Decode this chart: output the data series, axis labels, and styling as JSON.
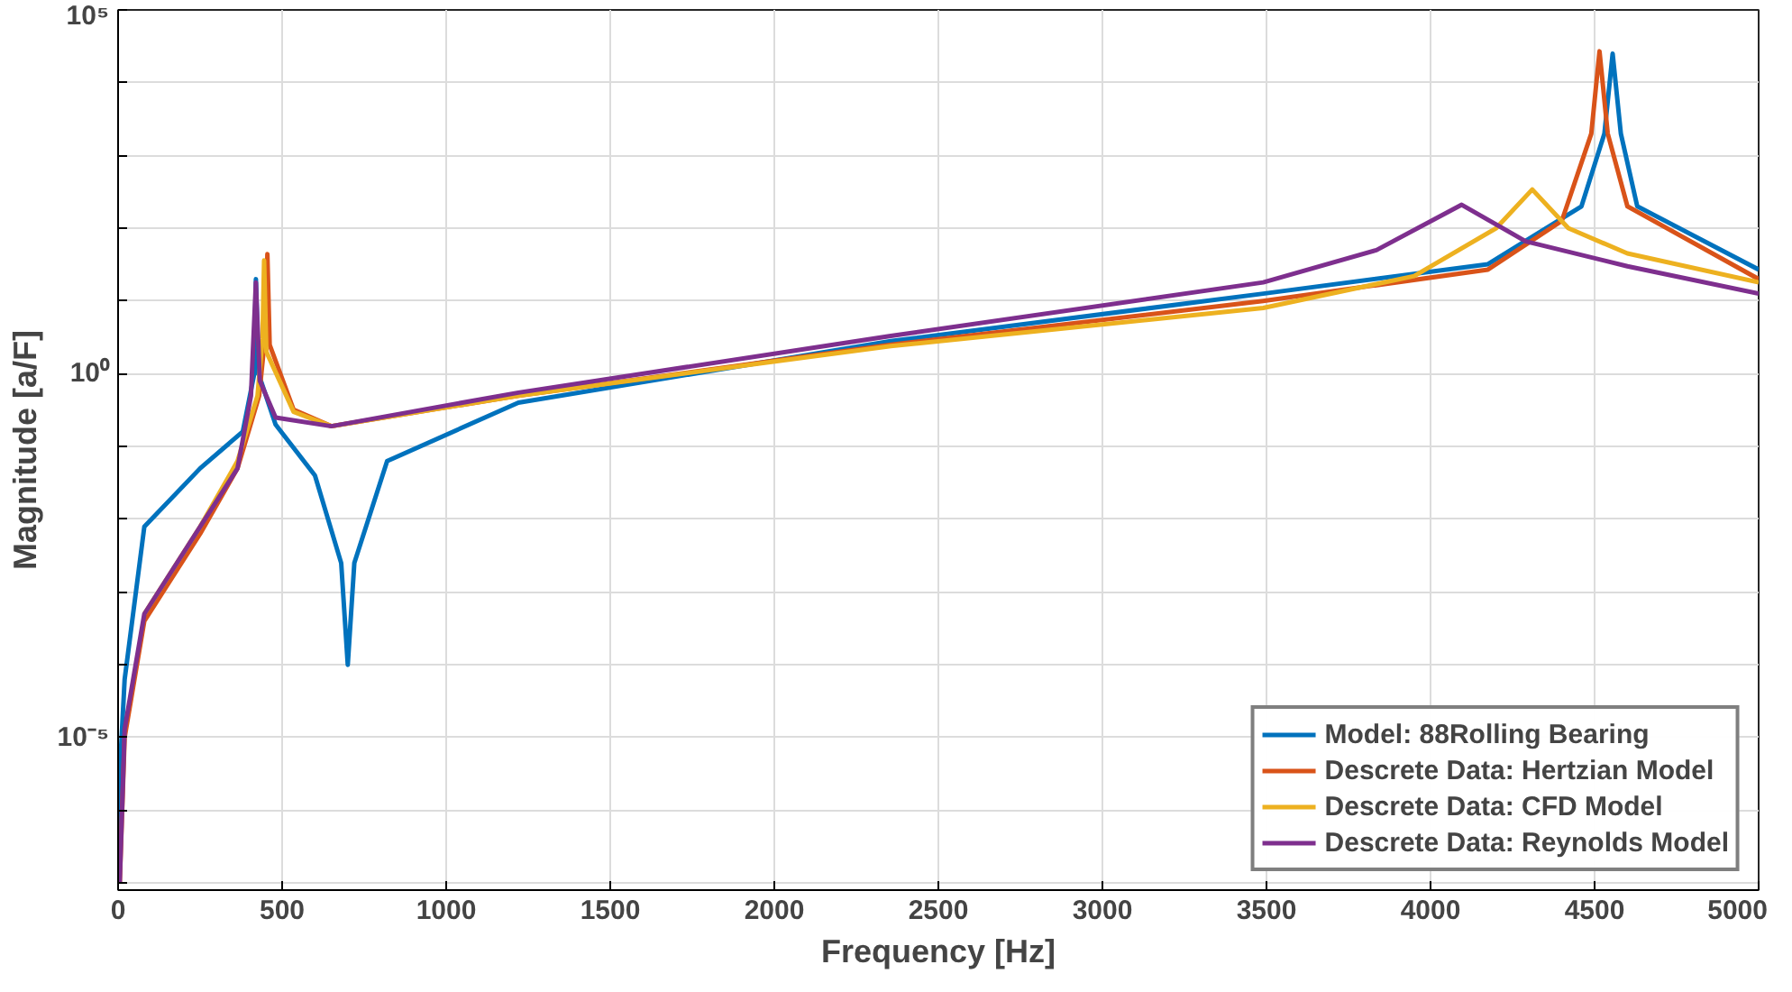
{
  "chart_data": {
    "type": "line",
    "xlabel": "Frequency [Hz]",
    "ylabel": "Magnitude [a/F]",
    "log": "y",
    "xlim": [
      0,
      5000
    ],
    "xticks": [
      0,
      500,
      1000,
      1500,
      2000,
      2500,
      3000,
      3500,
      4000,
      4500,
      5000
    ],
    "ylim": [
      8e-08,
      100000
    ],
    "yticks": [
      {
        "value": 1e-07,
        "label": null
      },
      {
        "value": 1e-06,
        "label": null
      },
      {
        "value": 1e-05,
        "label": "10⁻⁵"
      },
      {
        "value": 0.0001,
        "label": null
      },
      {
        "value": 0.001,
        "label": null
      },
      {
        "value": 0.01,
        "label": null
      },
      {
        "value": 0.1,
        "label": null
      },
      {
        "value": 1,
        "label": "10⁰"
      },
      {
        "value": 10,
        "label": null
      },
      {
        "value": 100,
        "label": null
      },
      {
        "value": 1000,
        "label": null
      },
      {
        "value": 10000,
        "label": null
      },
      {
        "value": 100000,
        "label": "10⁵"
      }
    ],
    "grid": true,
    "legend": "bottom right",
    "marker": "none",
    "line_style": "solid",
    "series": [
      {
        "name": "Model: 88Rolling Bearing",
        "color": "#0072bd",
        "x": [
          0,
          5,
          20,
          80,
          250,
          380,
          415,
          420,
          428,
          480,
          600,
          680,
          700,
          720,
          820,
          1220,
          2355,
          3490,
          4175,
          4460,
          4530,
          4555,
          4580,
          4630,
          5000
        ],
        "values": [
          1e-07,
          3.2e-06,
          6.3e-05,
          0.0079,
          0.05,
          0.16,
          1,
          20,
          1,
          0.2,
          0.04,
          0.0025,
          0.0001,
          0.0025,
          0.063,
          0.4,
          2.8,
          12.6,
          32,
          200,
          2000,
          25000,
          2000,
          200,
          27
        ]
      },
      {
        "name": "Descrete Data: Hertzian Model",
        "color": "#d95319",
        "x": [
          5,
          20,
          80,
          250,
          364,
          430,
          450,
          455,
          462,
          535,
          650,
          1220,
          2355,
          3490,
          4175,
          4400,
          4490,
          4515,
          4540,
          4600,
          5000
        ],
        "values": [
          1e-07,
          1e-05,
          0.0004,
          0.0063,
          0.05,
          0.5,
          4,
          44,
          2.5,
          0.32,
          0.19,
          0.5,
          2.5,
          10,
          27,
          126,
          2000,
          27000,
          2000,
          200,
          20
        ]
      },
      {
        "name": "Descrete Data: CFD Model",
        "color": "#edb120",
        "x": [
          80,
          250,
          364,
          425,
          440,
          445,
          452,
          535,
          650,
          1220,
          2355,
          3490,
          3950,
          4200,
          4310,
          4420,
          4600,
          5000
        ],
        "values": [
          0.0005,
          0.0079,
          0.063,
          0.5,
          3,
          36,
          2,
          0.3,
          0.19,
          0.5,
          2.4,
          8,
          22,
          100,
          340,
          100,
          45,
          18
        ]
      },
      {
        "name": "Descrete Data: Reynolds Model",
        "color": "#7e2f8e",
        "x": [
          5,
          20,
          80,
          250,
          364,
          405,
          420,
          432,
          480,
          650,
          1220,
          2355,
          3490,
          3835,
          4095,
          4290,
          4600,
          5000
        ],
        "values": [
          1e-07,
          1.3e-05,
          0.0005,
          0.0079,
          0.05,
          0.5,
          18,
          0.8,
          0.25,
          0.19,
          0.55,
          3.3,
          18,
          50,
          210,
          66,
          30,
          12.6
        ]
      }
    ]
  }
}
